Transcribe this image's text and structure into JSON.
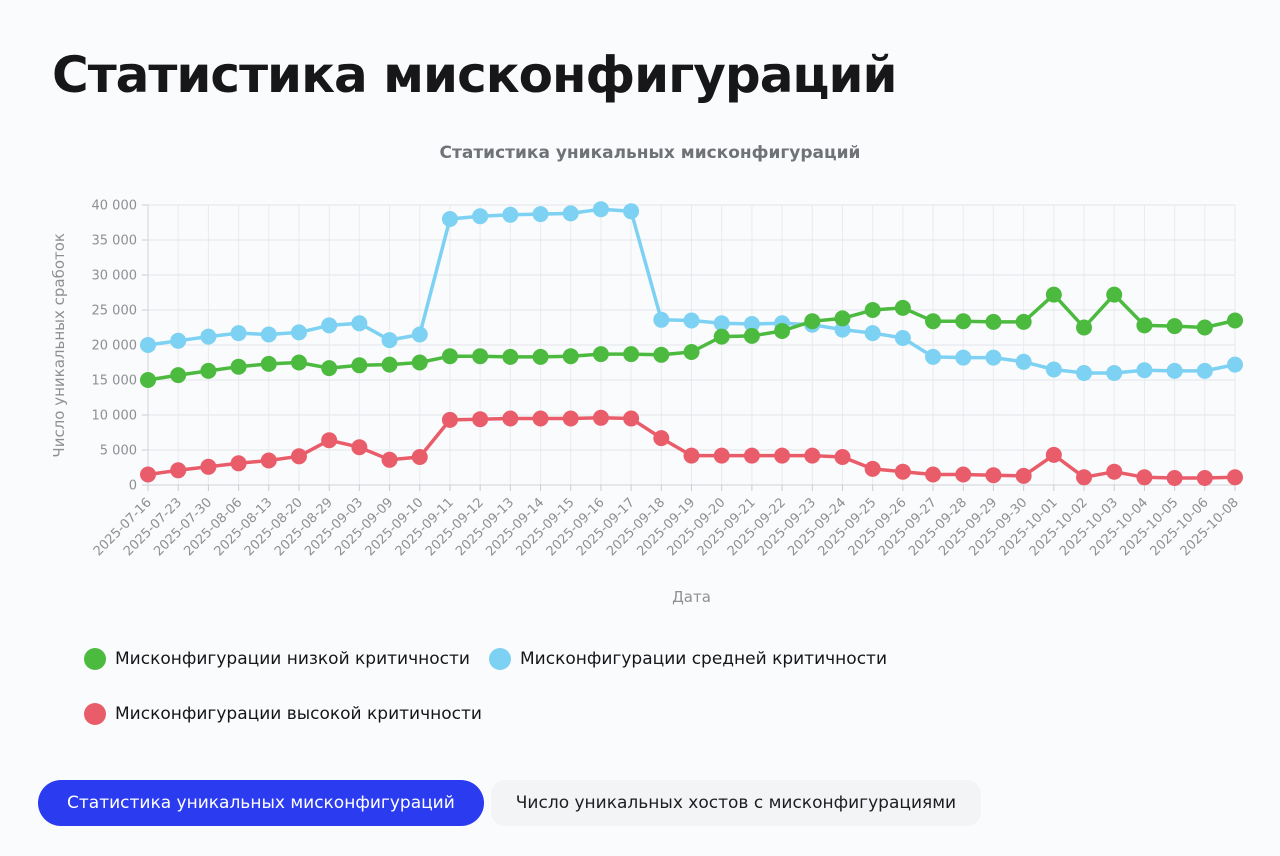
{
  "page": {
    "title": "Статистика мисконфигураций"
  },
  "chart_data": {
    "type": "line",
    "title": "Статистика уникальных мисконфигураций",
    "xlabel": "Дата",
    "ylabel": "Число уникальных сработок",
    "ylim": [
      0,
      40000
    ],
    "ytick_step": 5000,
    "ytick_labels": [
      "0",
      "5 000",
      "10 000",
      "15 000",
      "20 000",
      "25 000",
      "30 000",
      "35 000",
      "40 000"
    ],
    "grid": true,
    "legend_position": "bottom-left",
    "categories": [
      "2025-07-16",
      "2025-07-23",
      "2025-07-30",
      "2025-08-06",
      "2025-08-13",
      "2025-08-20",
      "2025-08-29",
      "2025-09-03",
      "2025-09-09",
      "2025-09-10",
      "2025-09-11",
      "2025-09-12",
      "2025-09-13",
      "2025-09-14",
      "2025-09-15",
      "2025-09-16",
      "2025-09-17",
      "2025-09-18",
      "2025-09-19",
      "2025-09-20",
      "2025-09-21",
      "2025-09-22",
      "2025-09-23",
      "2025-09-24",
      "2025-09-25",
      "2025-09-26",
      "2025-09-27",
      "2025-09-28",
      "2025-09-29",
      "2025-09-30",
      "2025-10-01",
      "2025-10-02",
      "2025-10-03",
      "2025-10-04",
      "2025-10-05",
      "2025-10-06",
      "2025-10-08"
    ],
    "series": [
      {
        "name": "Мисконфигурации низкой критичности",
        "color": "#4cba3f",
        "values": [
          15000,
          15700,
          16300,
          16900,
          17300,
          17500,
          16700,
          17100,
          17200,
          17500,
          18400,
          18400,
          18300,
          18300,
          18400,
          18700,
          18700,
          18600,
          19000,
          21200,
          21300,
          22000,
          23400,
          23800,
          25000,
          25300,
          23400,
          23400,
          23300,
          23300,
          27200,
          22500,
          27200,
          22800,
          22700,
          22500,
          23500
        ]
      },
      {
        "name": "Мисконфигурации средней критичности",
        "color": "#7dd1f2",
        "values": [
          20000,
          20600,
          21200,
          21700,
          21500,
          21800,
          22800,
          23100,
          20700,
          21500,
          38000,
          38400,
          38600,
          38700,
          38800,
          39400,
          39100,
          23600,
          23500,
          23100,
          23000,
          23100,
          22900,
          22200,
          21700,
          21000,
          18300,
          18200,
          18200,
          17600,
          16500,
          16000,
          16000,
          16400,
          16300,
          16300,
          17200
        ]
      },
      {
        "name": "Мисконфигурации высокой критичности",
        "color": "#e95d6b",
        "values": [
          1500,
          2100,
          2600,
          3100,
          3500,
          4100,
          6400,
          5400,
          3600,
          4000,
          9300,
          9400,
          9500,
          9500,
          9500,
          9600,
          9500,
          6700,
          4200,
          4200,
          4200,
          4200,
          4200,
          4000,
          2300,
          1900,
          1500,
          1500,
          1400,
          1300,
          4300,
          1100,
          1900,
          1100,
          1000,
          1000,
          1100
        ]
      }
    ]
  },
  "tabs": {
    "items": [
      {
        "label": "Статистика уникальных мисконфигураций",
        "active": true
      },
      {
        "label": "Число уникальных хостов с мисконфигурациями",
        "active": false
      }
    ]
  },
  "colors": {
    "active_tab_bg": "#2a3bf0",
    "active_tab_text": "#ffffff",
    "inactive_tab_bg": "#f3f4f6",
    "inactive_tab_text": "#1b1d21",
    "grid_line": "#e4e6ea",
    "axis_text": "#8d9093"
  }
}
